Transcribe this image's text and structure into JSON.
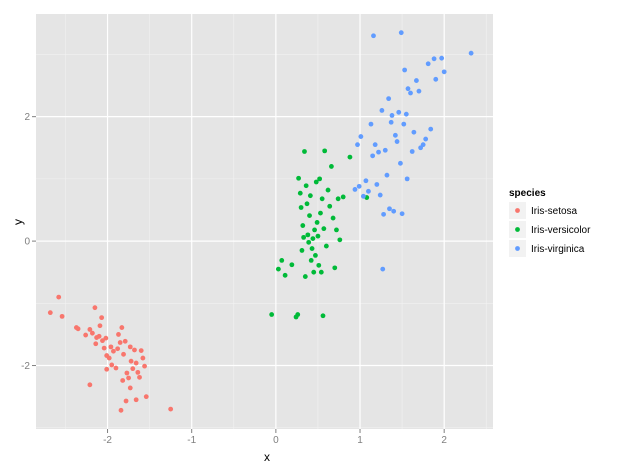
{
  "chart_data": {
    "type": "scatter",
    "title": "",
    "xlabel": "x",
    "ylabel": "y",
    "xlim": [
      -2.85,
      2.58
    ],
    "ylim": [
      -3.02,
      3.65
    ],
    "x_ticks": [
      -2,
      -1,
      0,
      1,
      2
    ],
    "x_tick_labels": [
      "-2",
      "-1",
      "0",
      "1",
      "2"
    ],
    "y_ticks": [
      -2,
      0,
      2
    ],
    "y_tick_labels": [
      "-2",
      "0",
      "2"
    ],
    "grid": true,
    "legend": {
      "title": "species",
      "placement": "right"
    },
    "series": [
      {
        "name": "Iris-setosa",
        "color": "#F8766D",
        "points": [
          [
            -2.68,
            -1.15
          ],
          [
            -2.58,
            -0.9
          ],
          [
            -2.54,
            -1.21
          ],
          [
            -2.37,
            -1.39
          ],
          [
            -2.35,
            -1.41
          ],
          [
            -2.26,
            -1.51
          ],
          [
            -2.21,
            -1.42
          ],
          [
            -2.18,
            -1.48
          ],
          [
            -2.15,
            -1.07
          ],
          [
            -2.14,
            -1.65
          ],
          [
            -2.13,
            -1.55
          ],
          [
            -2.1,
            -1.53
          ],
          [
            -2.09,
            -1.36
          ],
          [
            -2.07,
            -1.23
          ],
          [
            -2.06,
            -1.6
          ],
          [
            -2.04,
            -1.72
          ],
          [
            -2.02,
            -1.56
          ],
          [
            -2.01,
            -1.84
          ],
          [
            -1.98,
            -1.88
          ],
          [
            -1.96,
            -1.7
          ],
          [
            -1.95,
            -1.99
          ],
          [
            -1.93,
            -1.77
          ],
          [
            -1.9,
            -2.04
          ],
          [
            -1.88,
            -1.73
          ],
          [
            -1.87,
            -1.5
          ],
          [
            -1.85,
            -1.63
          ],
          [
            -1.83,
            -1.39
          ],
          [
            -1.81,
            -1.82
          ],
          [
            -1.79,
            -1.61
          ],
          [
            -1.77,
            -2.12
          ],
          [
            -1.75,
            -2.2
          ],
          [
            -1.73,
            -1.7
          ],
          [
            -1.72,
            -1.93
          ],
          [
            -1.7,
            -2.05
          ],
          [
            -1.68,
            -1.75
          ],
          [
            -1.66,
            -1.96
          ],
          [
            -1.64,
            -2.11
          ],
          [
            -1.62,
            -2.19
          ],
          [
            -1.6,
            -1.76
          ],
          [
            -1.58,
            -1.88
          ],
          [
            -1.56,
            -2.01
          ],
          [
            -1.54,
            -2.5
          ],
          [
            -1.73,
            -2.36
          ],
          [
            -1.78,
            -2.57
          ],
          [
            -1.82,
            -2.24
          ],
          [
            -1.84,
            -2.72
          ],
          [
            -2.21,
            -2.31
          ],
          [
            -2.01,
            -2.06
          ],
          [
            -1.66,
            -2.55
          ],
          [
            -1.25,
            -2.7
          ]
        ]
      },
      {
        "name": "Iris-versicolor",
        "color": "#00BA38",
        "points": [
          [
            -0.05,
            -1.18
          ],
          [
            0.03,
            -0.45
          ],
          [
            0.07,
            -0.31
          ],
          [
            0.11,
            -0.55
          ],
          [
            0.19,
            -0.38
          ],
          [
            0.24,
            -1.22
          ],
          [
            0.26,
            -1.18
          ],
          [
            0.27,
            1.01
          ],
          [
            0.29,
            0.77
          ],
          [
            0.3,
            0.54
          ],
          [
            0.31,
            -0.15
          ],
          [
            0.32,
            0.25
          ],
          [
            0.33,
            0.06
          ],
          [
            0.34,
            1.44
          ],
          [
            0.35,
            -0.57
          ],
          [
            0.36,
            0.89
          ],
          [
            0.37,
            0.6
          ],
          [
            0.38,
            0.1
          ],
          [
            0.39,
            -0.02
          ],
          [
            0.4,
            0.41
          ],
          [
            0.41,
            0.73
          ],
          [
            0.42,
            -0.31
          ],
          [
            0.43,
            -0.12
          ],
          [
            0.44,
            0.04
          ],
          [
            0.45,
            -0.5
          ],
          [
            0.46,
            0.18
          ],
          [
            0.47,
            -0.23
          ],
          [
            0.48,
            0.95
          ],
          [
            0.49,
            0.3
          ],
          [
            0.5,
            0.08
          ],
          [
            0.51,
            -0.39
          ],
          [
            0.52,
            1.0
          ],
          [
            0.53,
            0.45
          ],
          [
            0.54,
            -0.5
          ],
          [
            0.55,
            0.68
          ],
          [
            0.56,
            -1.2
          ],
          [
            0.57,
            0.2
          ],
          [
            0.58,
            1.45
          ],
          [
            0.6,
            -0.08
          ],
          [
            0.62,
            0.82
          ],
          [
            0.64,
            0.56
          ],
          [
            0.66,
            1.2
          ],
          [
            0.68,
            0.37
          ],
          [
            0.7,
            -0.43
          ],
          [
            0.72,
            0.18
          ],
          [
            0.74,
            0.68
          ],
          [
            0.76,
            0.02
          ],
          [
            0.8,
            0.71
          ],
          [
            0.88,
            1.35
          ],
          [
            1.08,
            0.7
          ]
        ]
      },
      {
        "name": "Iris-virginica",
        "color": "#619CFF",
        "points": [
          [
            0.94,
            0.83
          ],
          [
            0.97,
            1.55
          ],
          [
            0.99,
            0.88
          ],
          [
            1.01,
            1.68
          ],
          [
            1.04,
            0.72
          ],
          [
            1.07,
            0.97
          ],
          [
            1.1,
            0.8
          ],
          [
            1.13,
            1.88
          ],
          [
            1.15,
            1.37
          ],
          [
            1.16,
            3.3
          ],
          [
            1.18,
            1.55
          ],
          [
            1.2,
            0.91
          ],
          [
            1.22,
            1.43
          ],
          [
            1.24,
            0.74
          ],
          [
            1.26,
            2.1
          ],
          [
            1.27,
            -0.45
          ],
          [
            1.28,
            0.43
          ],
          [
            1.3,
            1.46
          ],
          [
            1.32,
            1.06
          ],
          [
            1.34,
            2.29
          ],
          [
            1.35,
            0.52
          ],
          [
            1.37,
            1.91
          ],
          [
            1.38,
            2.02
          ],
          [
            1.4,
            0.48
          ],
          [
            1.42,
            1.7
          ],
          [
            1.44,
            1.6
          ],
          [
            1.46,
            2.07
          ],
          [
            1.48,
            1.25
          ],
          [
            1.49,
            3.35
          ],
          [
            1.5,
            0.44
          ],
          [
            1.52,
            1.88
          ],
          [
            1.53,
            2.75
          ],
          [
            1.55,
            2.04
          ],
          [
            1.57,
            2.45
          ],
          [
            1.6,
            2.38
          ],
          [
            1.62,
            1.44
          ],
          [
            1.64,
            1.75
          ],
          [
            1.67,
            2.58
          ],
          [
            1.7,
            2.41
          ],
          [
            1.72,
            1.5
          ],
          [
            1.75,
            1.55
          ],
          [
            1.78,
            1.64
          ],
          [
            1.81,
            2.85
          ],
          [
            1.84,
            1.8
          ],
          [
            1.88,
            2.93
          ],
          [
            1.9,
            2.6
          ],
          [
            1.97,
            2.94
          ],
          [
            2.0,
            2.72
          ],
          [
            2.32,
            3.02
          ],
          [
            1.56,
            1.0
          ]
        ]
      }
    ]
  }
}
